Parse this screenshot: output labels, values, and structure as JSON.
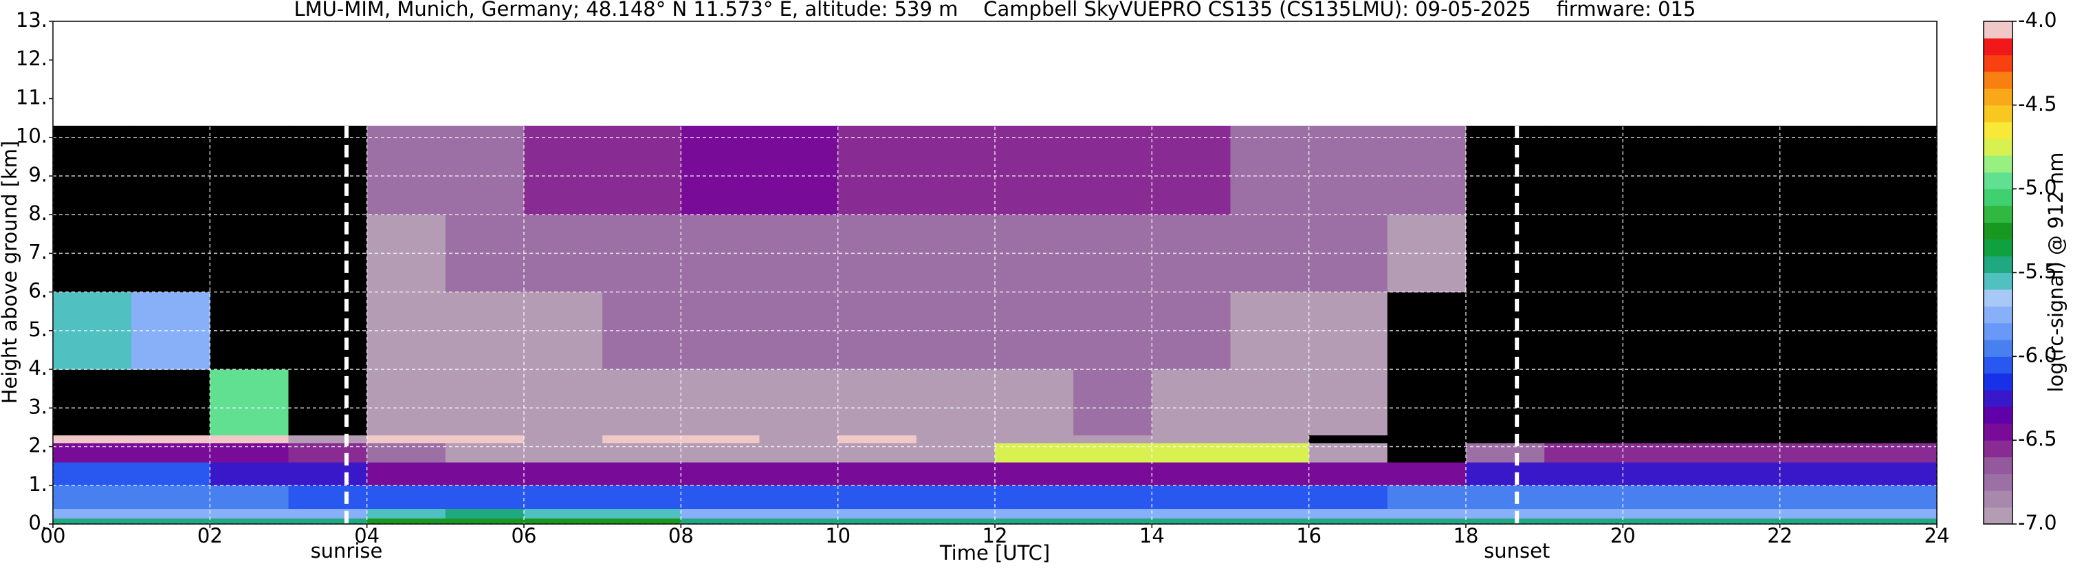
{
  "chart_data": {
    "type": "heatmap",
    "title": "LMU-MIM, Munich, Germany; 48.148° N 11.573° E, altitude: 539 m    Campbell SkyVUEPRO CS135 (CS135LMU): 09-05-2025    firmware: 015",
    "x_label": "Time [UTC]",
    "y_label": "Height above ground [km]",
    "xlim": [
      0,
      24
    ],
    "ylim": [
      0,
      13
    ],
    "xticks": [
      {
        "value": 0,
        "label": "00"
      },
      {
        "value": 2,
        "label": "02"
      },
      {
        "value": 4,
        "label": "04"
      },
      {
        "value": 6,
        "label": "06"
      },
      {
        "value": 8,
        "label": "08"
      },
      {
        "value": 10,
        "label": "10"
      },
      {
        "value": 12,
        "label": "12"
      },
      {
        "value": 14,
        "label": "14"
      },
      {
        "value": 16,
        "label": "16"
      },
      {
        "value": 18,
        "label": "18"
      },
      {
        "value": 20,
        "label": "20"
      },
      {
        "value": 22,
        "label": "22"
      },
      {
        "value": 24,
        "label": "24"
      }
    ],
    "yticks": [
      {
        "value": 0,
        "label": "0."
      },
      {
        "value": 1,
        "label": "1."
      },
      {
        "value": 2,
        "label": "2."
      },
      {
        "value": 3,
        "label": "3."
      },
      {
        "value": 4,
        "label": "4."
      },
      {
        "value": 5,
        "label": "5."
      },
      {
        "value": 6,
        "label": "6."
      },
      {
        "value": 7,
        "label": "7."
      },
      {
        "value": 8,
        "label": "8."
      },
      {
        "value": 9,
        "label": "9."
      },
      {
        "value": 10,
        "label": "10."
      },
      {
        "value": 11,
        "label": "11."
      },
      {
        "value": 12,
        "label": "12."
      },
      {
        "value": 13,
        "label": "13."
      }
    ],
    "grid": true,
    "xbins": [
      0,
      1,
      2,
      3,
      4,
      5,
      6,
      7,
      8,
      9,
      10,
      11,
      12,
      13,
      14,
      15,
      16,
      17,
      18,
      19,
      20,
      21,
      22,
      23,
      24
    ],
    "ybins": [
      0,
      0.15,
      0.4,
      1.0,
      1.6,
      2.1,
      2.3,
      4,
      6,
      8,
      10.3
    ],
    "values": [
      [
        -5.4,
        -5.4,
        -5.4,
        -5.4,
        -5.3,
        -5.3,
        -5.3,
        -5.3,
        -5.4,
        -5.4,
        -5.4,
        -5.4,
        -5.4,
        -5.4,
        -5.4,
        -5.4,
        -5.4,
        -5.4,
        -5.4,
        -5.4,
        -5.4,
        -5.4,
        -5.4,
        -5.4
      ],
      [
        -5.7,
        -5.7,
        -5.7,
        -5.8,
        -5.6,
        -5.5,
        -5.6,
        -5.6,
        -5.7,
        -5.7,
        -5.8,
        -5.8,
        -5.8,
        -5.8,
        -5.8,
        -5.8,
        -5.7,
        -5.7,
        -5.7,
        -5.7,
        -5.7,
        -5.7,
        -5.7,
        -5.7
      ],
      [
        -6.0,
        -6.0,
        -6.0,
        -6.1,
        -6.1,
        -6.1,
        -6.1,
        -6.1,
        -6.1,
        -6.1,
        -6.1,
        -6.1,
        -6.1,
        -6.1,
        -6.1,
        -6.1,
        -6.1,
        -6.0,
        -6.0,
        -5.9,
        -5.9,
        -5.9,
        -5.9,
        -5.9
      ],
      [
        -6.1,
        -6.1,
        -6.2,
        -6.3,
        -6.4,
        -6.5,
        -6.5,
        -6.5,
        -6.5,
        -6.5,
        -6.5,
        -6.5,
        -6.5,
        -6.5,
        -6.5,
        -6.5,
        -6.5,
        -6.5,
        -6.3,
        -6.2,
        -6.2,
        -6.2,
        -6.2,
        -6.2
      ],
      [
        -6.4,
        -6.4,
        -6.5,
        -6.6,
        -6.8,
        -6.9,
        -6.9,
        -6.9,
        -6.9,
        -6.9,
        -6.9,
        -6.9,
        -4.8,
        -4.8,
        -4.8,
        -4.8,
        -6.9,
        -7.2,
        -6.7,
        -6.6,
        -6.6,
        -6.6,
        -6.6,
        -6.6
      ],
      [
        -4.05,
        -4.05,
        -4.05,
        -6.9,
        -4.1,
        -4.1,
        -6.9,
        -4.1,
        -4.1,
        -6.9,
        -4.1,
        -6.9,
        -6.9,
        -6.9,
        -6.9,
        -6.9,
        -7.5,
        -7.5,
        -7.5,
        -7.5,
        -7.5,
        -7.5,
        -7.5,
        -7.5
      ],
      [
        -7.5,
        -7.5,
        -5.0,
        -7.5,
        -6.9,
        -6.9,
        -6.9,
        -6.9,
        -6.9,
        -6.9,
        -6.9,
        -6.9,
        -6.9,
        -6.8,
        -6.9,
        -6.9,
        -6.9,
        -7.5,
        -7.5,
        -7.5,
        -7.5,
        -7.5,
        -7.5,
        -7.5
      ],
      [
        -5.6,
        -5.8,
        -7.5,
        -7.5,
        -6.9,
        -6.9,
        -6.9,
        -6.8,
        -6.8,
        -6.8,
        -6.8,
        -6.8,
        -6.8,
        -6.8,
        -6.8,
        -6.9,
        -6.9,
        -7.4,
        -7.5,
        -7.5,
        -7.5,
        -7.5,
        -7.5,
        -7.5
      ],
      [
        -7.4,
        -7.4,
        -7.4,
        -7.4,
        -6.9,
        -6.8,
        -6.8,
        -6.7,
        -6.7,
        -6.7,
        -6.7,
        -6.7,
        -6.7,
        -6.7,
        -6.8,
        -6.8,
        -6.8,
        -6.9,
        -7.4,
        -7.4,
        -7.4,
        -7.4,
        -7.4,
        -7.4
      ],
      [
        -7.1,
        -7.1,
        -7.1,
        -7.1,
        -6.8,
        -6.7,
        -6.6,
        -6.6,
        -6.5,
        -6.5,
        -6.6,
        -6.6,
        -6.6,
        -6.6,
        -6.6,
        -6.7,
        -6.7,
        -6.8,
        -7.1,
        -7.1,
        -7.1,
        -7.1,
        -7.1,
        -7.1
      ]
    ],
    "under_color": "#000000",
    "annotations": [
      {
        "x": 3.74,
        "label": "sunrise"
      },
      {
        "x": 18.65,
        "label": "sunset"
      }
    ],
    "colorbar": {
      "label": "log(rc-signal) @ 912 nm",
      "lim": [
        -7,
        -4
      ],
      "ticks": [
        {
          "value": -4,
          "label": "-4.0"
        },
        {
          "value": -4.5,
          "label": "-4.5"
        },
        {
          "value": -5,
          "label": "-5.0"
        },
        {
          "value": -5.5,
          "label": "-5.5"
        },
        {
          "value": -6,
          "label": "-6.0"
        },
        {
          "value": -6.5,
          "label": "-6.5"
        },
        {
          "value": -7,
          "label": "-7.0"
        }
      ],
      "colors": [
        "#b49cb4",
        "#a888ac",
        "#9c70a4",
        "#94589c",
        "#882c94",
        "#780c98",
        "#6000a8",
        "#3818c8",
        "#1830e8",
        "#2858f0",
        "#4880f0",
        "#6898f8",
        "#88b0f8",
        "#a8c8f8",
        "#50c0c0",
        "#20a880",
        "#10a040",
        "#189820",
        "#30b840",
        "#40d070",
        "#60e090",
        "#98f080",
        "#d8f050",
        "#f8e838",
        "#f8c820",
        "#f8a818",
        "#f88010",
        "#f84010",
        "#f01818",
        "#f0c8c8"
      ]
    }
  }
}
